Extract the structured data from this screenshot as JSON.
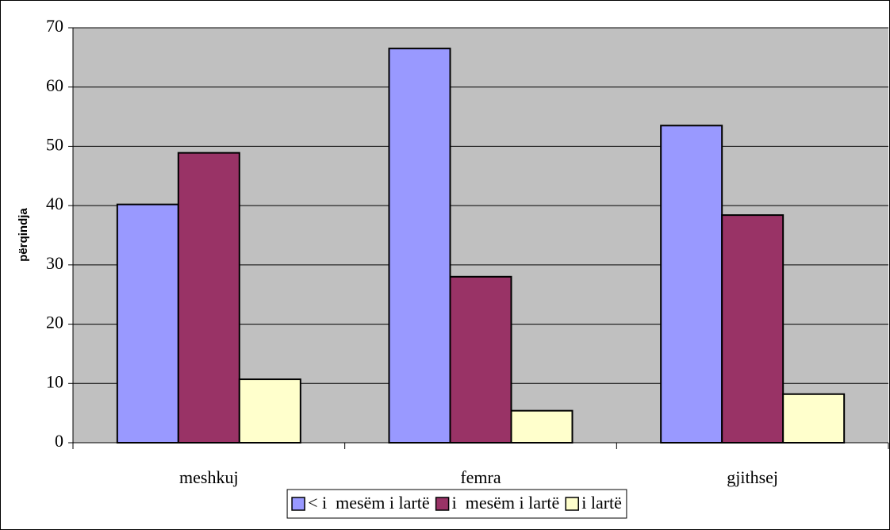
{
  "chart_data": {
    "type": "bar",
    "y_label": "përqindja",
    "categories": [
      "meshkuj",
      "femra",
      "gjithsej"
    ],
    "series": [
      {
        "name": "< i  mesëm i lartë",
        "color": "#9999ff",
        "values": [
          40.2,
          66.5,
          53.5
        ]
      },
      {
        "name": "i  mesëm i lartë",
        "color": "#993366",
        "values": [
          48.9,
          28.0,
          38.4
        ]
      },
      {
        "name": "i lartë",
        "color": "#ffffcc",
        "values": [
          10.7,
          5.4,
          8.2
        ]
      }
    ],
    "ylim": [
      0,
      70
    ],
    "yticks": [
      0,
      10,
      20,
      30,
      40,
      50,
      60,
      70
    ],
    "grid": true,
    "legend": "bottom"
  }
}
